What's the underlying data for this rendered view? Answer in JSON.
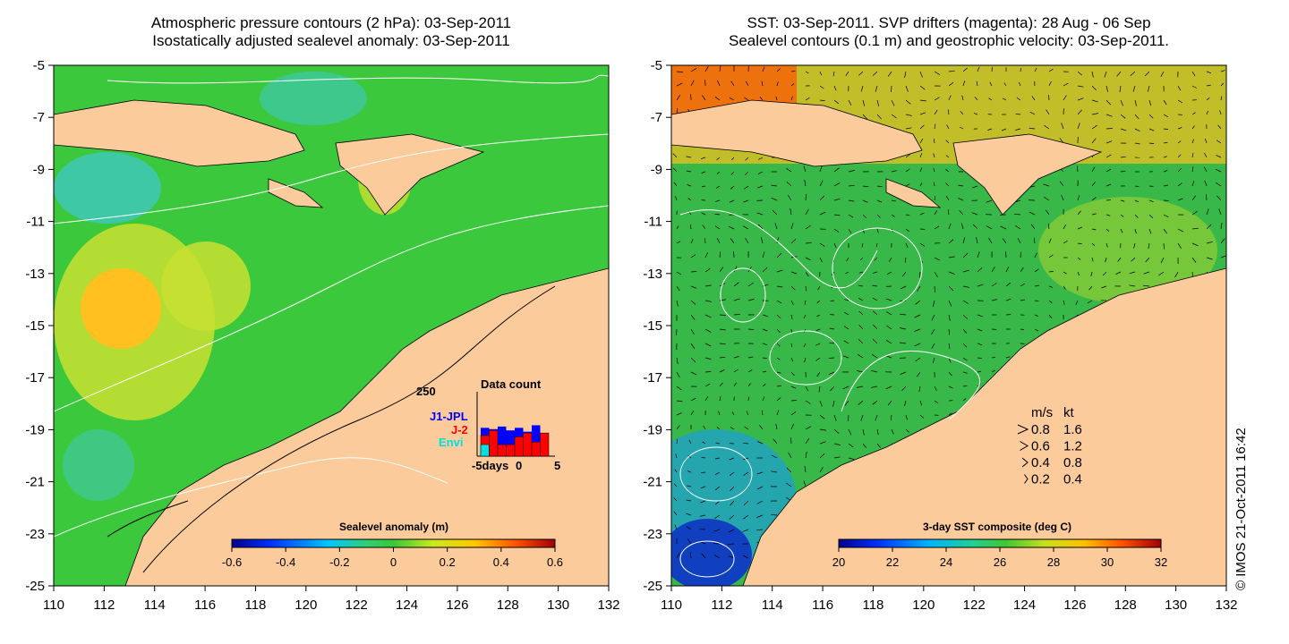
{
  "left_panel": {
    "title_line1": "Atmospheric pressure contours (2 hPa): 03-Sep-2011",
    "title_line2": "Isostatically adjusted sealevel anomaly: 03-Sep-2011",
    "colorbar_label": "Sealevel anomaly (m)",
    "colorbar_ticks": [
      "-0.6",
      "-0.4",
      "-0.2",
      "0",
      "0.2",
      "0.4",
      "0.6"
    ],
    "data_count": {
      "title": "Data count",
      "max_label": "250",
      "xlabel": "-5days",
      "xticks": [
        "0",
        "5"
      ],
      "legend": [
        {
          "name": "J1-JPL",
          "color": "#0000ff"
        },
        {
          "name": "J-2",
          "color": "#ff0000"
        },
        {
          "name": "Envi",
          "color": "#00e0e0"
        }
      ],
      "blue_totals": [
        110,
        105,
        115,
        100,
        110,
        95,
        120,
        0
      ],
      "red_counts": [
        80,
        100,
        45,
        45,
        75,
        90,
        55,
        90
      ],
      "cyan_counts": [
        45,
        0,
        0,
        0,
        0,
        0,
        0,
        0
      ]
    }
  },
  "right_panel": {
    "title_line1": "SST: 03-Sep-2011. SVP drifters (magenta): 28 Aug - 06 Sep",
    "title_line2": "Sealevel contours (0.1 m) and geostrophic velocity: 03-Sep-2011.",
    "colorbar_label": "3-day SST composite (deg C)",
    "colorbar_ticks": [
      "20",
      "22",
      "24",
      "26",
      "28",
      "30",
      "32"
    ],
    "velocity_legend": {
      "header_ms": "m/s",
      "header_kt": "kt",
      "rows": [
        {
          "ms": "0.8",
          "kt": "1.6"
        },
        {
          "ms": "0.6",
          "kt": "1.2"
        },
        {
          "ms": "0.4",
          "kt": "0.8"
        },
        {
          "ms": "0.2",
          "kt": "0.4"
        }
      ]
    }
  },
  "axes": {
    "lat_labels": [
      "-5",
      "-7",
      "-9",
      "-11",
      "-13",
      "-15",
      "-17",
      "-19",
      "-21",
      "-23",
      "-25"
    ],
    "lon_labels": [
      "110",
      "112",
      "114",
      "116",
      "118",
      "120",
      "122",
      "124",
      "126",
      "128",
      "130",
      "132"
    ],
    "lat_range": [
      -25,
      -5
    ],
    "lon_range": [
      110,
      132
    ]
  },
  "copyright": "© IMOS 21-Oct-2011 16:42",
  "colors": {
    "land": "#fbcb9b",
    "ocean_left": "#39c63c",
    "ocean_right": "#2fb84a"
  }
}
